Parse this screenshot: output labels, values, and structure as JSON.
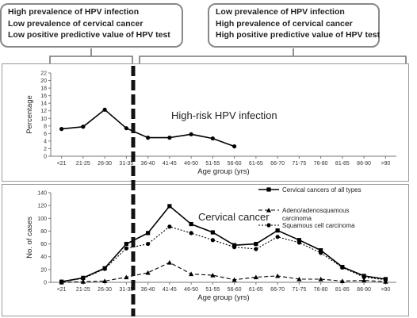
{
  "callouts": {
    "left": [
      "High prevalence of HPV infection",
      "Low prevalence of cervical cancer",
      "Low positive predictive value of HPV test"
    ],
    "right": [
      "Low prevalence of HPV infection",
      "High prevalence of cervical cancer",
      "High positive predictive value of HPV test"
    ]
  },
  "chart_data": [
    {
      "type": "line",
      "annotation": "High-risk HPV infection",
      "xlabel": "Age group (yrs)",
      "ylabel": "Percentage",
      "ylim": [
        0,
        22
      ],
      "yticks": [
        0,
        2,
        4,
        6,
        8,
        10,
        12,
        14,
        16,
        18,
        20,
        22
      ],
      "categories": [
        "<21",
        "21-25",
        "26-30",
        "31-35",
        "36-40",
        "41-45",
        "46-50",
        "51-55",
        "56-60",
        "61-65",
        "66-70",
        "71-75",
        "76-80",
        "81-85",
        "86-90",
        ">90"
      ],
      "series": [
        {
          "values": [
            7.2,
            7.8,
            12.3,
            7.4,
            4.9,
            4.9,
            5.8,
            4.7,
            2.6,
            null,
            null,
            null,
            null,
            null,
            null,
            null
          ],
          "color": "#000000"
        }
      ]
    },
    {
      "type": "line",
      "annotation": "Cervical cancer",
      "xlabel": "Age group (yrs)",
      "ylabel": "No. of cases",
      "ylim": [
        0,
        140
      ],
      "yticks": [
        0,
        20,
        40,
        60,
        80,
        100,
        120,
        140
      ],
      "categories": [
        "<21",
        "21-25",
        "26-30",
        "31-35",
        "36-40",
        "41-45",
        "46-50",
        "51-55",
        "56-60",
        "61-65",
        "66-70",
        "71-75",
        "76-80",
        "81-85",
        "86-90",
        ">90"
      ],
      "legend_position": "top-right",
      "series": [
        {
          "name": "Cervical cancers of all types",
          "marker": "square",
          "dash": "solid",
          "values": [
            1,
            7,
            22,
            60,
            77,
            119,
            91,
            78,
            58,
            60,
            81,
            66,
            50,
            24,
            10,
            5
          ]
        },
        {
          "name": "Adeno/adenosquamous carcinoma",
          "marker": "triangle",
          "dash": "dashed",
          "values": [
            0,
            1,
            2,
            8,
            15,
            31,
            13,
            11,
            4,
            8,
            10,
            5,
            5,
            2,
            3,
            1
          ]
        },
        {
          "name": "Squamous cell carcinoma",
          "marker": "circle",
          "dash": "dotted",
          "values": [
            1,
            6,
            21,
            53,
            60,
            87,
            77,
            66,
            55,
            52,
            71,
            62,
            46,
            23,
            8,
            4
          ]
        }
      ]
    }
  ]
}
